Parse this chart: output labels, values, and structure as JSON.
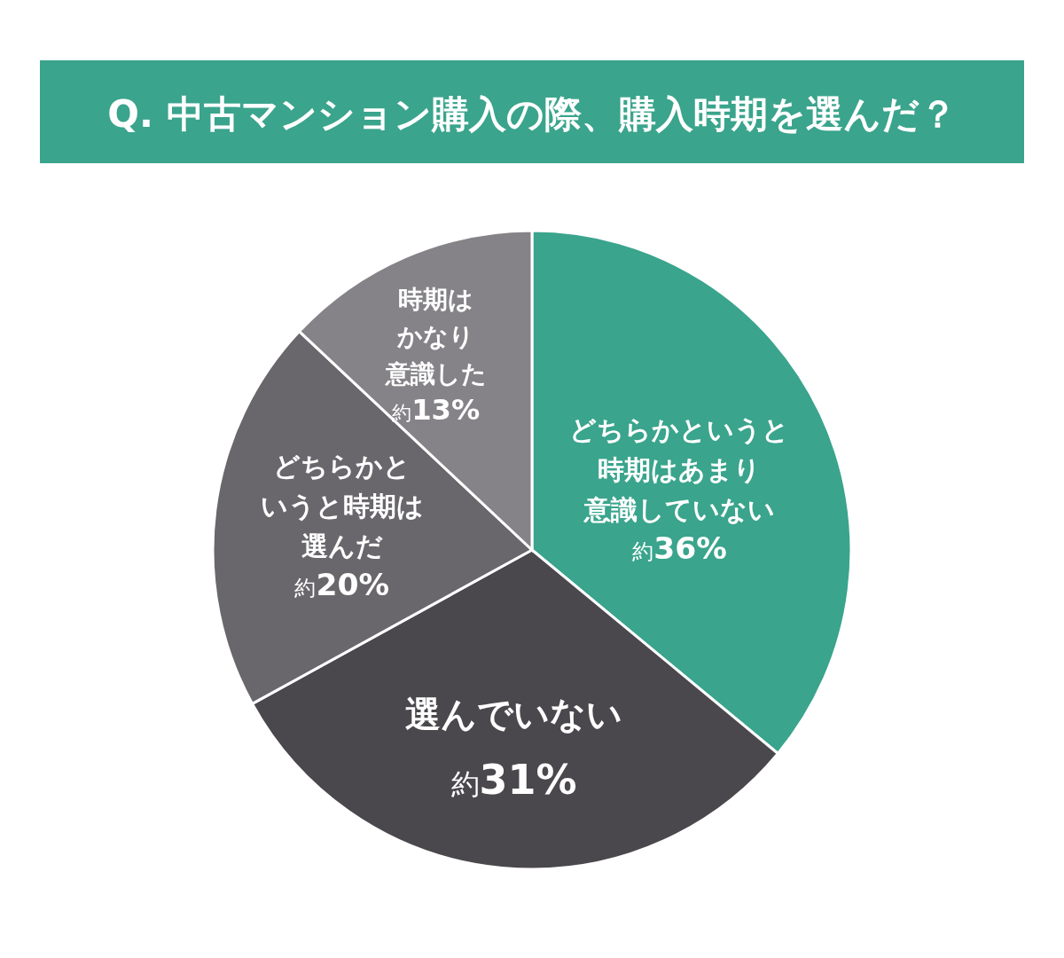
{
  "chart_data": {
    "type": "pie",
    "title": "Q. 中古マンション購入の際、購入時期を選んだ？",
    "categories": [
      "どちらかというと時期はあまり意識していない",
      "選んでいない",
      "どちらかというと時期は選んだ",
      "時期はかなり意識した"
    ],
    "values": [
      36,
      31,
      20,
      13
    ],
    "colors": [
      "#3aa48c",
      "#4a484c",
      "#69676b",
      "#858387"
    ],
    "value_labels": [
      "約36%",
      "約31%",
      "約20%",
      "約13%"
    ]
  }
}
